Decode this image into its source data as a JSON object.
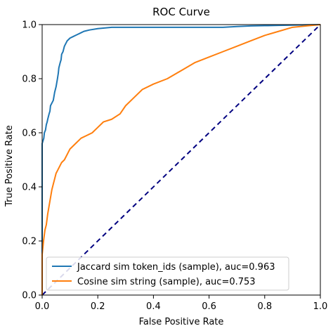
{
  "chart_data": {
    "type": "line",
    "title": "ROC Curve",
    "xlabel": "False Positive Rate",
    "ylabel": "True Positive Rate",
    "xlim": [
      0.0,
      1.0
    ],
    "ylim": [
      0.0,
      1.0
    ],
    "xticks": [
      "0.0",
      "0.2",
      "0.4",
      "0.6",
      "0.8",
      "1.0"
    ],
    "yticks": [
      "0.0",
      "0.2",
      "0.4",
      "0.6",
      "0.8",
      "1.0"
    ],
    "grid": false,
    "legend_position": "lower-right",
    "diagonal": {
      "x": [
        0,
        1
      ],
      "y": [
        0,
        1
      ],
      "color": "#000080",
      "style": "dashed"
    },
    "series": [
      {
        "name": "Jaccard sim token_ids (sample), auc=0.963",
        "color": "#1f77b4",
        "x": [
          0.0,
          0.0,
          0.003,
          0.006,
          0.008,
          0.012,
          0.015,
          0.018,
          0.02,
          0.025,
          0.028,
          0.03,
          0.035,
          0.04,
          0.045,
          0.05,
          0.055,
          0.058,
          0.06,
          0.065,
          0.068,
          0.07,
          0.075,
          0.08,
          0.085,
          0.09,
          0.1,
          0.11,
          0.12,
          0.13,
          0.14,
          0.15,
          0.17,
          0.2,
          0.25,
          0.3,
          0.4,
          0.5,
          0.6,
          0.65,
          0.7,
          0.75,
          0.8,
          0.85,
          0.9,
          0.95,
          1.0
        ],
        "y": [
          0.0,
          0.56,
          0.57,
          0.58,
          0.6,
          0.61,
          0.63,
          0.64,
          0.65,
          0.67,
          0.68,
          0.7,
          0.71,
          0.72,
          0.75,
          0.77,
          0.8,
          0.82,
          0.84,
          0.86,
          0.87,
          0.89,
          0.9,
          0.92,
          0.93,
          0.94,
          0.95,
          0.955,
          0.96,
          0.965,
          0.97,
          0.975,
          0.98,
          0.985,
          0.99,
          0.99,
          0.99,
          0.99,
          0.99,
          0.99,
          0.993,
          0.995,
          0.996,
          0.997,
          0.998,
          0.999,
          1.0
        ]
      },
      {
        "name": "Cosine sim string (sample), auc=0.753",
        "color": "#ff7f0e",
        "x": [
          0.0,
          0.0,
          0.005,
          0.01,
          0.015,
          0.02,
          0.025,
          0.03,
          0.035,
          0.04,
          0.045,
          0.05,
          0.055,
          0.06,
          0.065,
          0.07,
          0.08,
          0.09,
          0.1,
          0.12,
          0.14,
          0.16,
          0.18,
          0.2,
          0.22,
          0.25,
          0.28,
          0.3,
          0.33,
          0.36,
          0.4,
          0.45,
          0.5,
          0.55,
          0.6,
          0.65,
          0.7,
          0.75,
          0.8,
          0.85,
          0.9,
          0.95,
          1.0
        ],
        "y": [
          0.0,
          0.15,
          0.2,
          0.24,
          0.26,
          0.3,
          0.33,
          0.36,
          0.39,
          0.41,
          0.43,
          0.45,
          0.46,
          0.47,
          0.48,
          0.49,
          0.5,
          0.52,
          0.54,
          0.56,
          0.58,
          0.59,
          0.6,
          0.62,
          0.64,
          0.65,
          0.67,
          0.7,
          0.73,
          0.76,
          0.78,
          0.8,
          0.83,
          0.86,
          0.88,
          0.9,
          0.92,
          0.94,
          0.96,
          0.975,
          0.99,
          0.995,
          1.0
        ]
      }
    ]
  }
}
